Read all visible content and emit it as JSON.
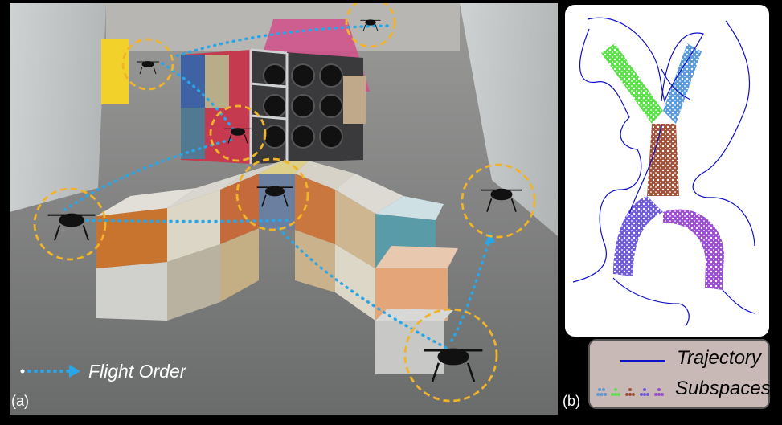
{
  "panel_a": {
    "label": "(a)",
    "legend_text": "Flight Order",
    "drone_marker_color": "#f0b32a",
    "flight_path_color": "#29a6e8"
  },
  "panel_b": {
    "label": "(b)",
    "legend": {
      "trajectory_label": "Trajectory",
      "subspaces_label": "Subspaces",
      "trajectory_color": "#1010c8",
      "subspace_colors": [
        "#5b9ad8",
        "#5ce04a",
        "#a0523a",
        "#6f5ad8",
        "#9b4fd0"
      ]
    }
  }
}
